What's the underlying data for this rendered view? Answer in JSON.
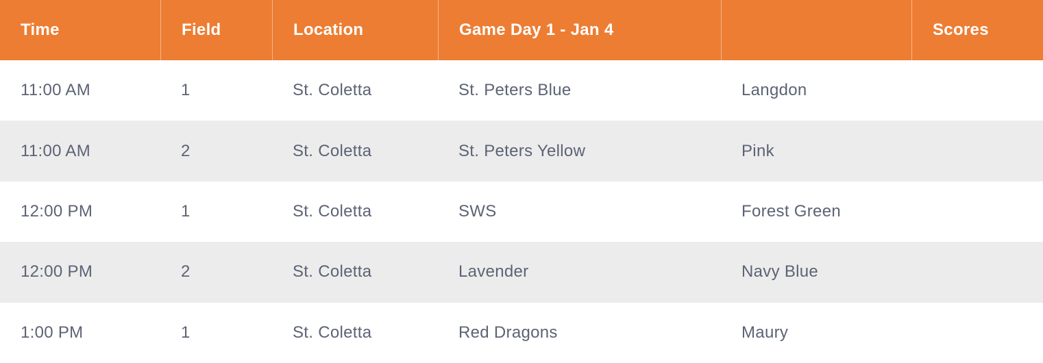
{
  "table": {
    "headers": {
      "time": "Time",
      "field": "Field",
      "location": "Location",
      "game_day": "Game Day 1 - Jan 4",
      "away": "",
      "scores": "Scores"
    },
    "rows": [
      {
        "time": "11:00 AM",
        "field": "1",
        "location": "St. Coletta",
        "home_team": "St. Peters Blue",
        "away_team": "Langdon",
        "score": ""
      },
      {
        "time": "11:00 AM",
        "field": "2",
        "location": "St. Coletta",
        "home_team": "St. Peters Yellow",
        "away_team": "Pink",
        "score": ""
      },
      {
        "time": "12:00 PM",
        "field": "1",
        "location": "St. Coletta",
        "home_team": "SWS",
        "away_team": "Forest Green",
        "score": ""
      },
      {
        "time": "12:00 PM",
        "field": "2",
        "location": "St. Coletta",
        "home_team": "Lavender",
        "away_team": "Navy Blue",
        "score": ""
      },
      {
        "time": "1:00 PM",
        "field": "1",
        "location": "St. Coletta",
        "home_team": "Red Dragons",
        "away_team": "Maury",
        "score": ""
      }
    ]
  },
  "colors": {
    "header_bg": "#ED7D33",
    "header_text": "#FFFFFF",
    "header_divider": "rgba(255,255,255,0.45)",
    "row_bg": "#FFFFFF",
    "row_alt_bg": "#ECECEC",
    "body_text": "#5C6374"
  }
}
